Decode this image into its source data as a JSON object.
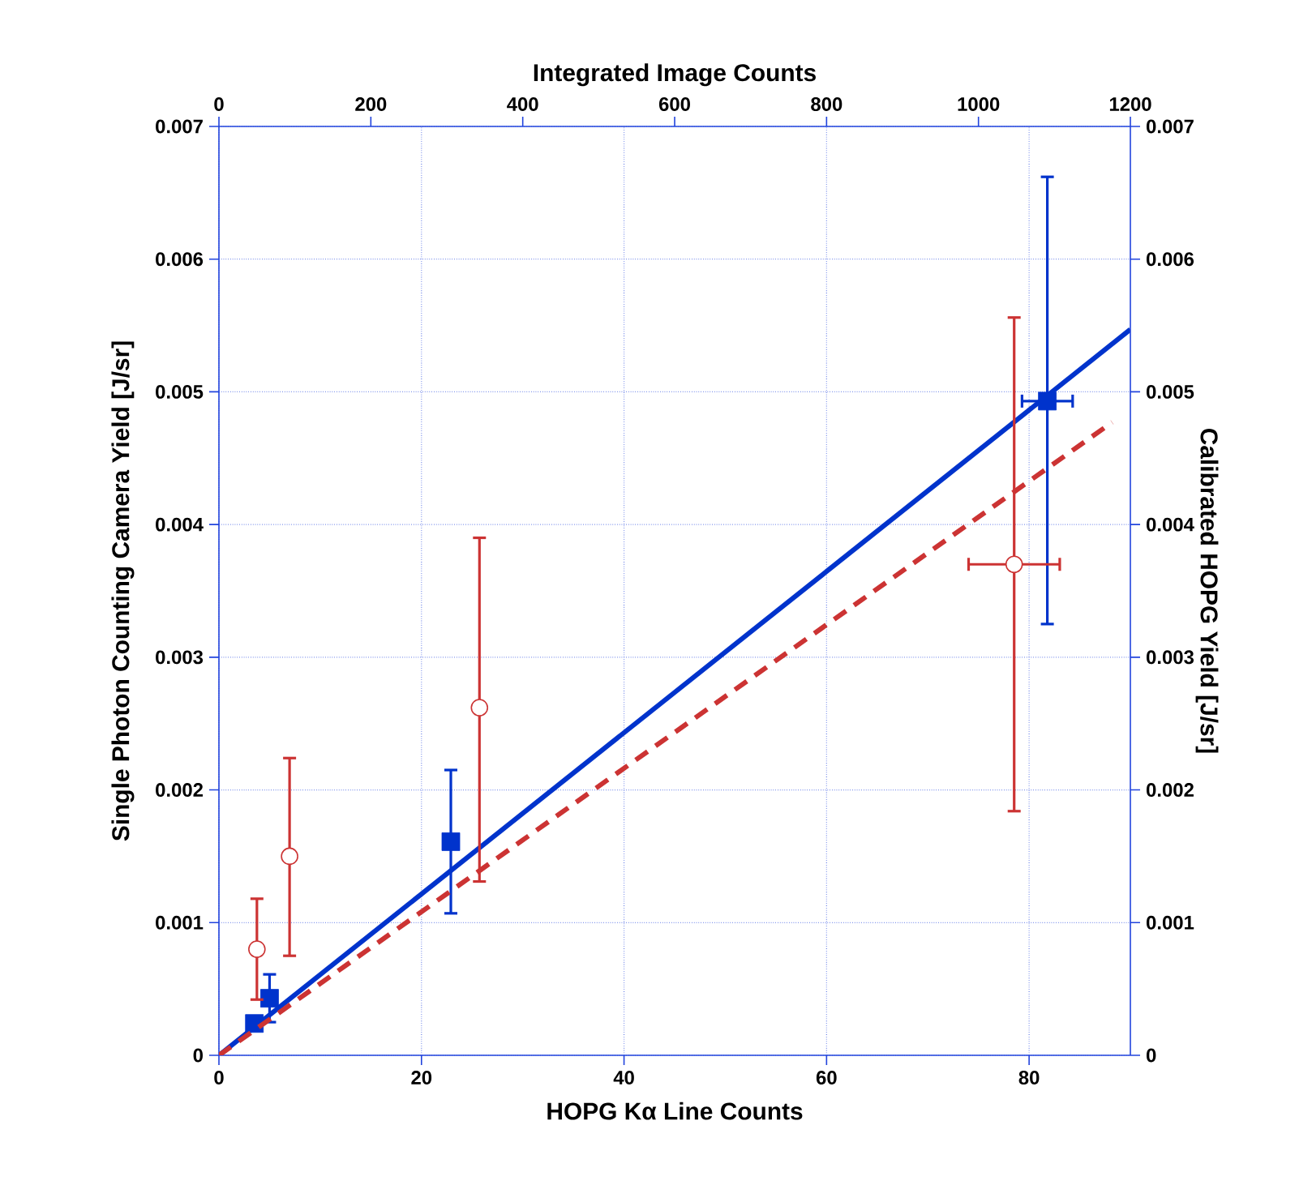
{
  "chart_data": {
    "type": "scatter",
    "xlabel": "HOPG Kα Line Counts",
    "x2label": "Integrated Image Counts",
    "ylabel": "Single Photon Counting Camera Yield [J/sr]",
    "y2label": "Calibrated HOPG Yield [J/sr]",
    "xlim": [
      0,
      90
    ],
    "xticks": [
      0,
      20,
      40,
      60,
      80
    ],
    "x2lim": [
      0,
      1200
    ],
    "x2ticks": [
      0,
      200,
      400,
      600,
      800,
      1000,
      1200
    ],
    "ylim": [
      0,
      0.007
    ],
    "yticks": [
      0,
      0.001,
      0.002,
      0.003,
      0.004,
      0.005,
      0.006,
      0.007
    ],
    "y2lim": [
      0,
      0.007
    ],
    "y2ticks": [
      0,
      0.001,
      0.002,
      0.003,
      0.004,
      0.005,
      0.006,
      0.007
    ],
    "grid": true,
    "series": [
      {
        "color": "#0033cc",
        "marker": "square",
        "x": [
          3.5,
          5.0,
          22.9,
          81.8
        ],
        "values": [
          0.00024,
          0.00043,
          0.00161,
          0.00493
        ],
        "errors": [
          null,
          0.00018,
          0.00054,
          [
            0.00325,
            0.00662
          ]
        ],
        "xerrors": [
          null,
          null,
          null,
          2.5
        ]
      },
      {
        "type": "line",
        "color": "#0033cc",
        "marker": "none",
        "line_style": "solid",
        "x": [
          0,
          90
        ],
        "values": [
          0,
          0.00547
        ]
      },
      {
        "axis": "x2",
        "color": "#cc3333",
        "marker": "circle",
        "x": [
          50,
          93,
          343,
          1047
        ],
        "values": [
          0.0008,
          0.0015,
          0.00262,
          0.0037
        ],
        "errors": [
          0.00038,
          [
            0.00075,
            0.00224
          ],
          [
            0.00131,
            0.0039
          ],
          [
            0.00184,
            0.00556
          ]
        ],
        "xerrors": [
          null,
          null,
          null,
          60
        ]
      },
      {
        "type": "line",
        "axis": "x2",
        "color": "#cc3333",
        "marker": "none",
        "line_style": "dashed",
        "x": [
          0,
          1176
        ],
        "values": [
          0,
          0.00477
        ]
      }
    ]
  }
}
